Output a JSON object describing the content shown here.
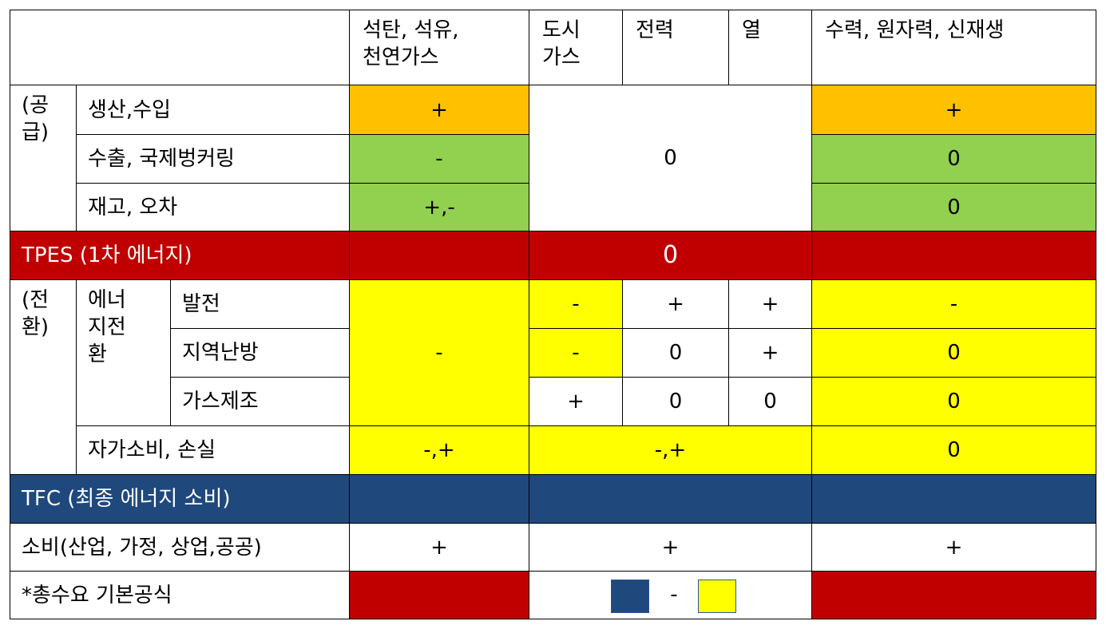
{
  "colors": {
    "orange": "#ffc000",
    "green": "#92d050",
    "red": "#c00000",
    "yellow": "#ffff00",
    "navy": "#1f497d",
    "white": "#ffffff"
  },
  "header": {
    "col_coal_oil_gas": "석탄, 석유,\n천연가스",
    "col_city_gas": "도시\n가스",
    "col_power": "전력",
    "col_heat": "열",
    "col_hydro_nuclear_renew": "수력, 원자력, 신재생"
  },
  "supply": {
    "group_label": "(공\n급)",
    "row_production": "생산,수입",
    "row_export": "수출, 국제벙커링",
    "row_stock": "재고, 오차",
    "production_fossil": "+",
    "export_fossil": "-",
    "stock_fossil": "+,-",
    "middle_value": "0",
    "production_renew": "+",
    "export_renew": "0",
    "stock_renew": "0"
  },
  "tpes": {
    "label": "TPES (1차 에너지)",
    "value": "0"
  },
  "transform": {
    "group_label": "(전\n환)",
    "sub_label": "에너\n지전\n환",
    "row_generation": "발전",
    "row_district": "지역난방",
    "row_gas_mfg": "가스제조",
    "row_own_use": "자가소비, 손실",
    "fossil_transform": "-",
    "generation_city_gas": "-",
    "generation_power": "+",
    "generation_heat": "+",
    "generation_renew": "-",
    "district_city_gas": "-",
    "district_power": "0",
    "district_heat": "+",
    "district_renew": "0",
    "gasmfg_city_gas": "+",
    "gasmfg_power": "0",
    "gasmfg_heat": "0",
    "gasmfg_renew": "0",
    "ownuse_fossil": "-,+",
    "ownuse_middle": "-,+",
    "ownuse_renew": "0"
  },
  "tfc": {
    "label": "TFC (최종 에너지 소비)"
  },
  "consumption": {
    "label": "소비(산업, 가정, 상업,공공)",
    "fossil": "+",
    "middle": "+",
    "renew": "+"
  },
  "formula": {
    "label": "*총수요 기본공식",
    "operator": "-"
  }
}
